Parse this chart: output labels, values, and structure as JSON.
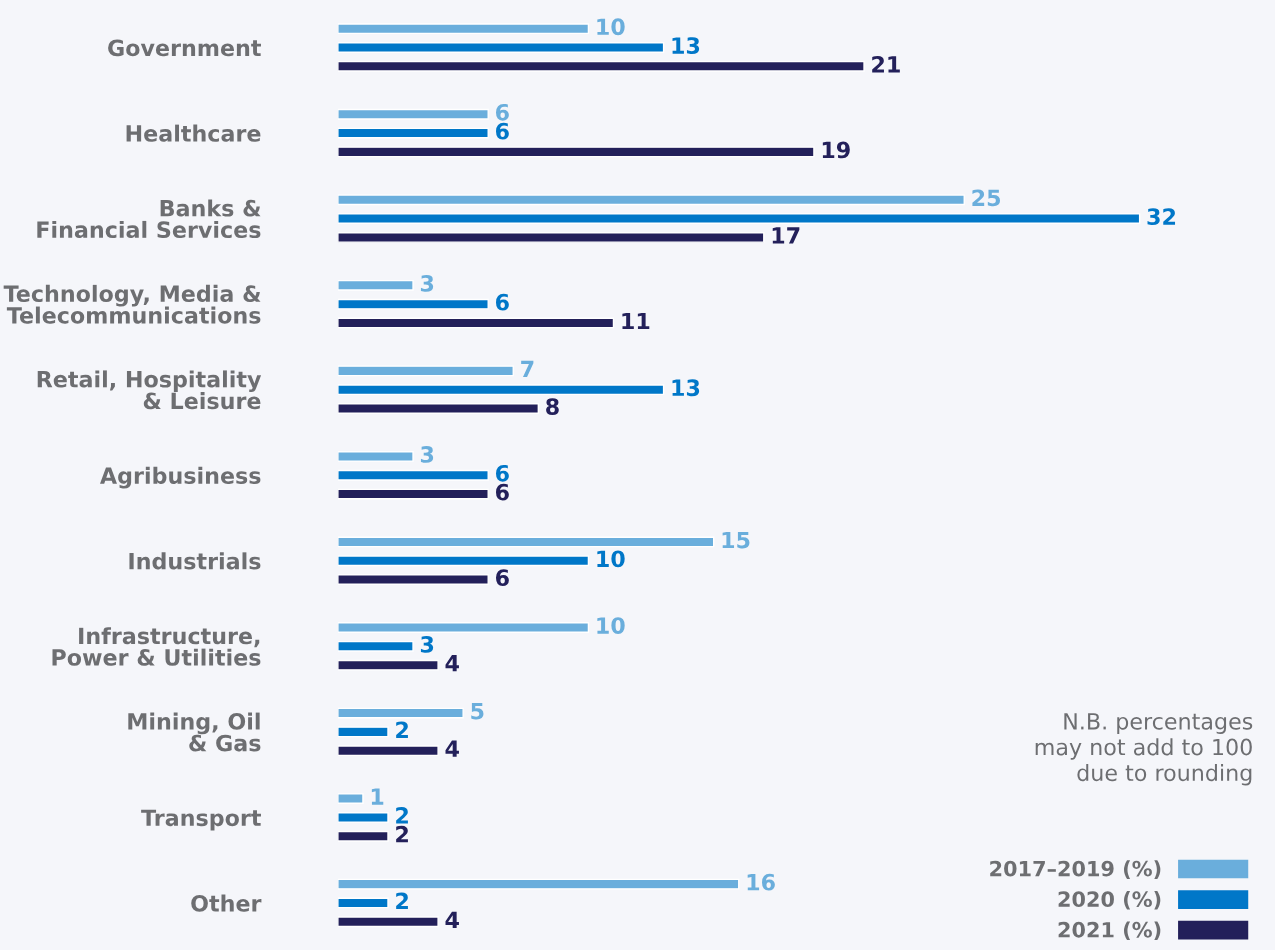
{
  "chart_data": {
    "type": "bar",
    "orientation": "horizontal",
    "data_labels": true,
    "grid": false,
    "legend": "bottom right",
    "categories": [
      "Government",
      "Healthcare",
      "Banks &\nFinancial Services",
      "Technology, Media &\nTelecommunications",
      "Retail, Hospitality\n& Leisure",
      "Agribusiness",
      "Industrials",
      "Infrastructure,\nPower & Utilities",
      "Mining, Oil\n& Gas",
      "Transport",
      "Other"
    ],
    "series": [
      {
        "name": "2017–2019 (%)",
        "color": "#6aaedc",
        "values": [
          10,
          6,
          25,
          3,
          7,
          3,
          15,
          10,
          5,
          1,
          16
        ]
      },
      {
        "name": "2020 (%)",
        "color": "#0077c8",
        "values": [
          13,
          6,
          32,
          6,
          13,
          6,
          10,
          3,
          2,
          2,
          2
        ]
      },
      {
        "name": "2021 (%)",
        "color": "#23205a",
        "values": [
          21,
          19,
          17,
          11,
          8,
          6,
          6,
          4,
          4,
          2,
          4
        ]
      }
    ],
    "annotations": [
      "N.B. percentages\nmay not add to 100\ndue to rounding"
    ]
  }
}
